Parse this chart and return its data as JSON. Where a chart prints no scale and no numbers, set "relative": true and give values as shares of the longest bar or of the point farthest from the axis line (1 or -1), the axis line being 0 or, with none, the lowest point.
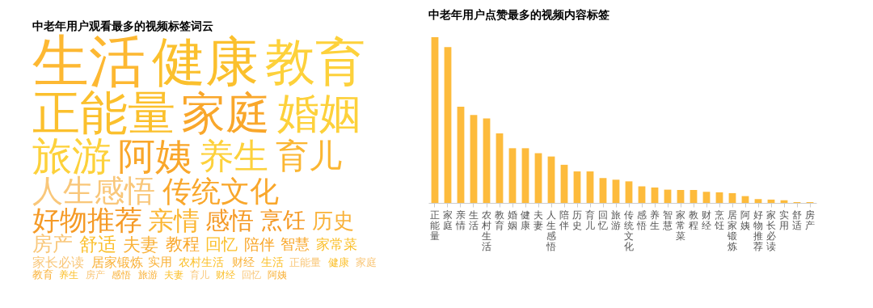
{
  "chart_data": [
    {
      "type": "other",
      "title": "中老年用户观看最多的视频标签词云",
      "annotations": [
        "生活",
        "健康",
        "教育",
        "正能量",
        "家庭",
        "婚姻",
        "旅游",
        "阿姨",
        "养生",
        "育儿",
        "人生感悟",
        "传统文化",
        "好物推荐",
        "亲情",
        "感悟",
        "烹饪",
        "历史",
        "房产",
        "舒适",
        "夫妻",
        "教程",
        "回忆",
        "陪伴",
        "智慧",
        "家常菜",
        "家长必读",
        "居家锻炼",
        "实用",
        "农村生活",
        "财经",
        "生活",
        "正能量",
        "健康",
        "家庭",
        "教育",
        "养生",
        "房产",
        "感悟",
        "旅游",
        "夫妻",
        "育儿",
        "财经",
        "回忆",
        "阿姨"
      ],
      "colors": [
        "#fdb832",
        "#fbc02d",
        "#fdd13b",
        "#fbc02d",
        "#f9a72b",
        "#fdd13b",
        "#fdd13b",
        "#f9a72b",
        "#fdd13b",
        "#fbb632",
        "#f9c77a",
        "#f9a72b",
        "#f59a26",
        "#fbb632",
        "#f59a26",
        "#f59a26",
        "#f9b23a",
        "#f9c77a",
        "#fbc02d",
        "#f9b23a",
        "#f9a72b",
        "#fbc02d",
        "#f9a72b",
        "#f9a72b",
        "#fbc02d",
        "#f9c77a",
        "#f9b23a",
        "#f9b23a",
        "#fbc02d",
        "#f9b23a",
        "#fbc02d",
        "#f9c77a",
        "#fbc02d",
        "#f9c77a",
        "#f9b23a",
        "#fbc02d",
        "#f9c77a",
        "#f9b23a",
        "#f9b23a",
        "#fbc02d",
        "#f9c77a",
        "#fbc02d",
        "#f9c77a",
        "#f9b23a"
      ]
    },
    {
      "type": "bar",
      "title": "中老年用户点赞最多的视频内容标签",
      "relative": true,
      "color": "#fdbb3c",
      "categories": [
        "正能量",
        "家庭",
        "亲情",
        "生活",
        "农村生活",
        "教育",
        "婚姻",
        "健康",
        "夫妻",
        "人生感悟",
        "陪伴",
        "历史",
        "育儿",
        "回忆",
        "旅游",
        "传统文化",
        "感悟",
        "养生",
        "智慧",
        "家常菜",
        "教程",
        "财经",
        "烹饪",
        "居家锻炼",
        "阿姨",
        "好物推荐",
        "家长必读",
        "实用",
        "舒适",
        "房产"
      ],
      "values": [
        1,
        0.94,
        0.58,
        0.53,
        0.51,
        0.42,
        0.33,
        0.33,
        0.3,
        0.28,
        0.23,
        0.19,
        0.19,
        0.15,
        0.14,
        0.13,
        0.1,
        0.093,
        0.08,
        0.078,
        0.078,
        0.067,
        0.064,
        0.059,
        0.041,
        0.023,
        0.02,
        0.016,
        0.005,
        0.005
      ]
    }
  ]
}
